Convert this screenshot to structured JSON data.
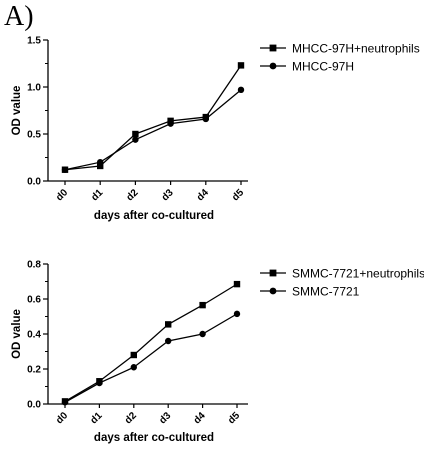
{
  "panel_label": "A)",
  "chart_data": [
    {
      "type": "line",
      "categories": [
        "d0",
        "d1",
        "d2",
        "d3",
        "d4",
        "d5"
      ],
      "xlabel": "days after co-cultured",
      "ylabel": "OD value",
      "ylim": [
        0,
        1.5
      ],
      "yticks": [
        "0.0",
        "0.5",
        "1.0",
        "1.5"
      ],
      "yminor_step": 0.25,
      "legend_position": "top-right",
      "series": [
        {
          "name": "MHCC-97H+neutrophils",
          "marker": "square",
          "values": [
            0.12,
            0.16,
            0.5,
            0.64,
            0.68,
            1.23
          ]
        },
        {
          "name": "MHCC-97H",
          "marker": "circle",
          "values": [
            0.12,
            0.2,
            0.44,
            0.61,
            0.66,
            0.97
          ]
        }
      ]
    },
    {
      "type": "line",
      "categories": [
        "d0",
        "d1",
        "d2",
        "d3",
        "d4",
        "d5"
      ],
      "xlabel": "days after co-cultured",
      "ylabel": "OD value",
      "ylim": [
        0,
        0.8
      ],
      "yticks": [
        "0.0",
        "0.2",
        "0.4",
        "0.6",
        "0.8"
      ],
      "yminor_step": 0.1,
      "legend_position": "top-right",
      "series": [
        {
          "name": "SMMC-7721+neutrophils",
          "marker": "square",
          "values": [
            0.015,
            0.13,
            0.28,
            0.455,
            0.565,
            0.685
          ]
        },
        {
          "name": "SMMC-7721",
          "marker": "circle",
          "values": [
            0.01,
            0.12,
            0.21,
            0.36,
            0.4,
            0.515
          ]
        }
      ]
    }
  ]
}
